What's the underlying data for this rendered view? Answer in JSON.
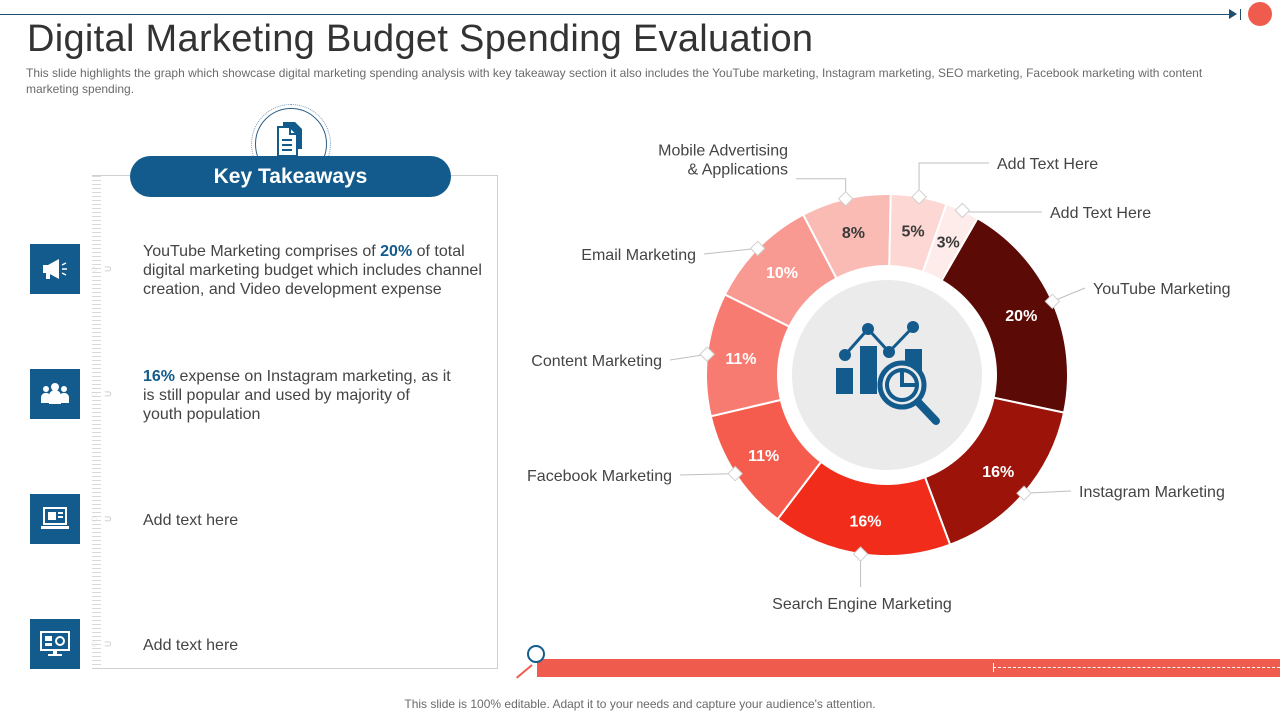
{
  "slide": {
    "title": "Digital Marketing Budget Spending Evaluation",
    "subtitle": "This slide highlights the graph which showcase digital marketing spending analysis with key takeaway section it also includes the YouTube  marketing, Instagram marketing, SEO marketing, Facebook marketing with content marketing spending.",
    "footer": "This slide is 100% editable. Adapt it to your needs and capture your audience's attention."
  },
  "takeaways": {
    "heading": "Key Takeaways",
    "items": [
      {
        "icon": "megaphone-icon",
        "pre": "YouTube  Marketing comprises of ",
        "highlight": "20%",
        "post": " of total digital marketing budget which includes channel creation, and Video development expense"
      },
      {
        "icon": "people-group-icon",
        "pre": "",
        "highlight": "16%",
        "post": " expense on Instagram  marketing, as it is still popular and used by majority of youth population"
      },
      {
        "icon": "laptop-video-icon",
        "pre": "Add text here",
        "highlight": "",
        "post": ""
      },
      {
        "icon": "monitor-dashboard-icon",
        "pre": "Add text here",
        "highlight": "",
        "post": ""
      }
    ]
  },
  "colors": {
    "brand_blue": "#135b8c",
    "accent_red": "#ef5b4c"
  },
  "chart_data": {
    "type": "pie",
    "style": "donut",
    "center_icon": "analytics-magnifier-icon",
    "slices": [
      {
        "label": "YouTube  Marketing",
        "value": 20,
        "display": "20%",
        "color": "#5c0a05",
        "text_color": "#ffffff"
      },
      {
        "label": "Instagram  Marketing",
        "value": 16,
        "display": "16%",
        "color": "#9c1309",
        "text_color": "#ffffff"
      },
      {
        "label": "Search Engine Marketing",
        "value": 16,
        "display": "16%",
        "color": "#f12c1b",
        "text_color": "#ffffff"
      },
      {
        "label": "Facebook Marketing",
        "value": 11,
        "display": "11%",
        "color": "#f55c4d",
        "text_color": "#ffffff"
      },
      {
        "label": "Content Marketing",
        "value": 11,
        "display": "11%",
        "color": "#f77b70",
        "text_color": "#ffffff"
      },
      {
        "label": "Email Marketing",
        "value": 10,
        "display": "10%",
        "color": "#f99a92",
        "text_color": "#ffffff"
      },
      {
        "label": "Mobile Advertising\n& Applications",
        "value": 8,
        "display": "8%",
        "color": "#fbbbb5",
        "text_color": "#3a3a3a"
      },
      {
        "label": "Add Text Here",
        "value": 5,
        "display": "5%",
        "color": "#fdd7d3",
        "text_color": "#3a3a3a"
      },
      {
        "label": "Add Text Here",
        "value": 3,
        "display": "3%",
        "color": "#feeceb",
        "text_color": "#3a3a3a"
      }
    ]
  }
}
